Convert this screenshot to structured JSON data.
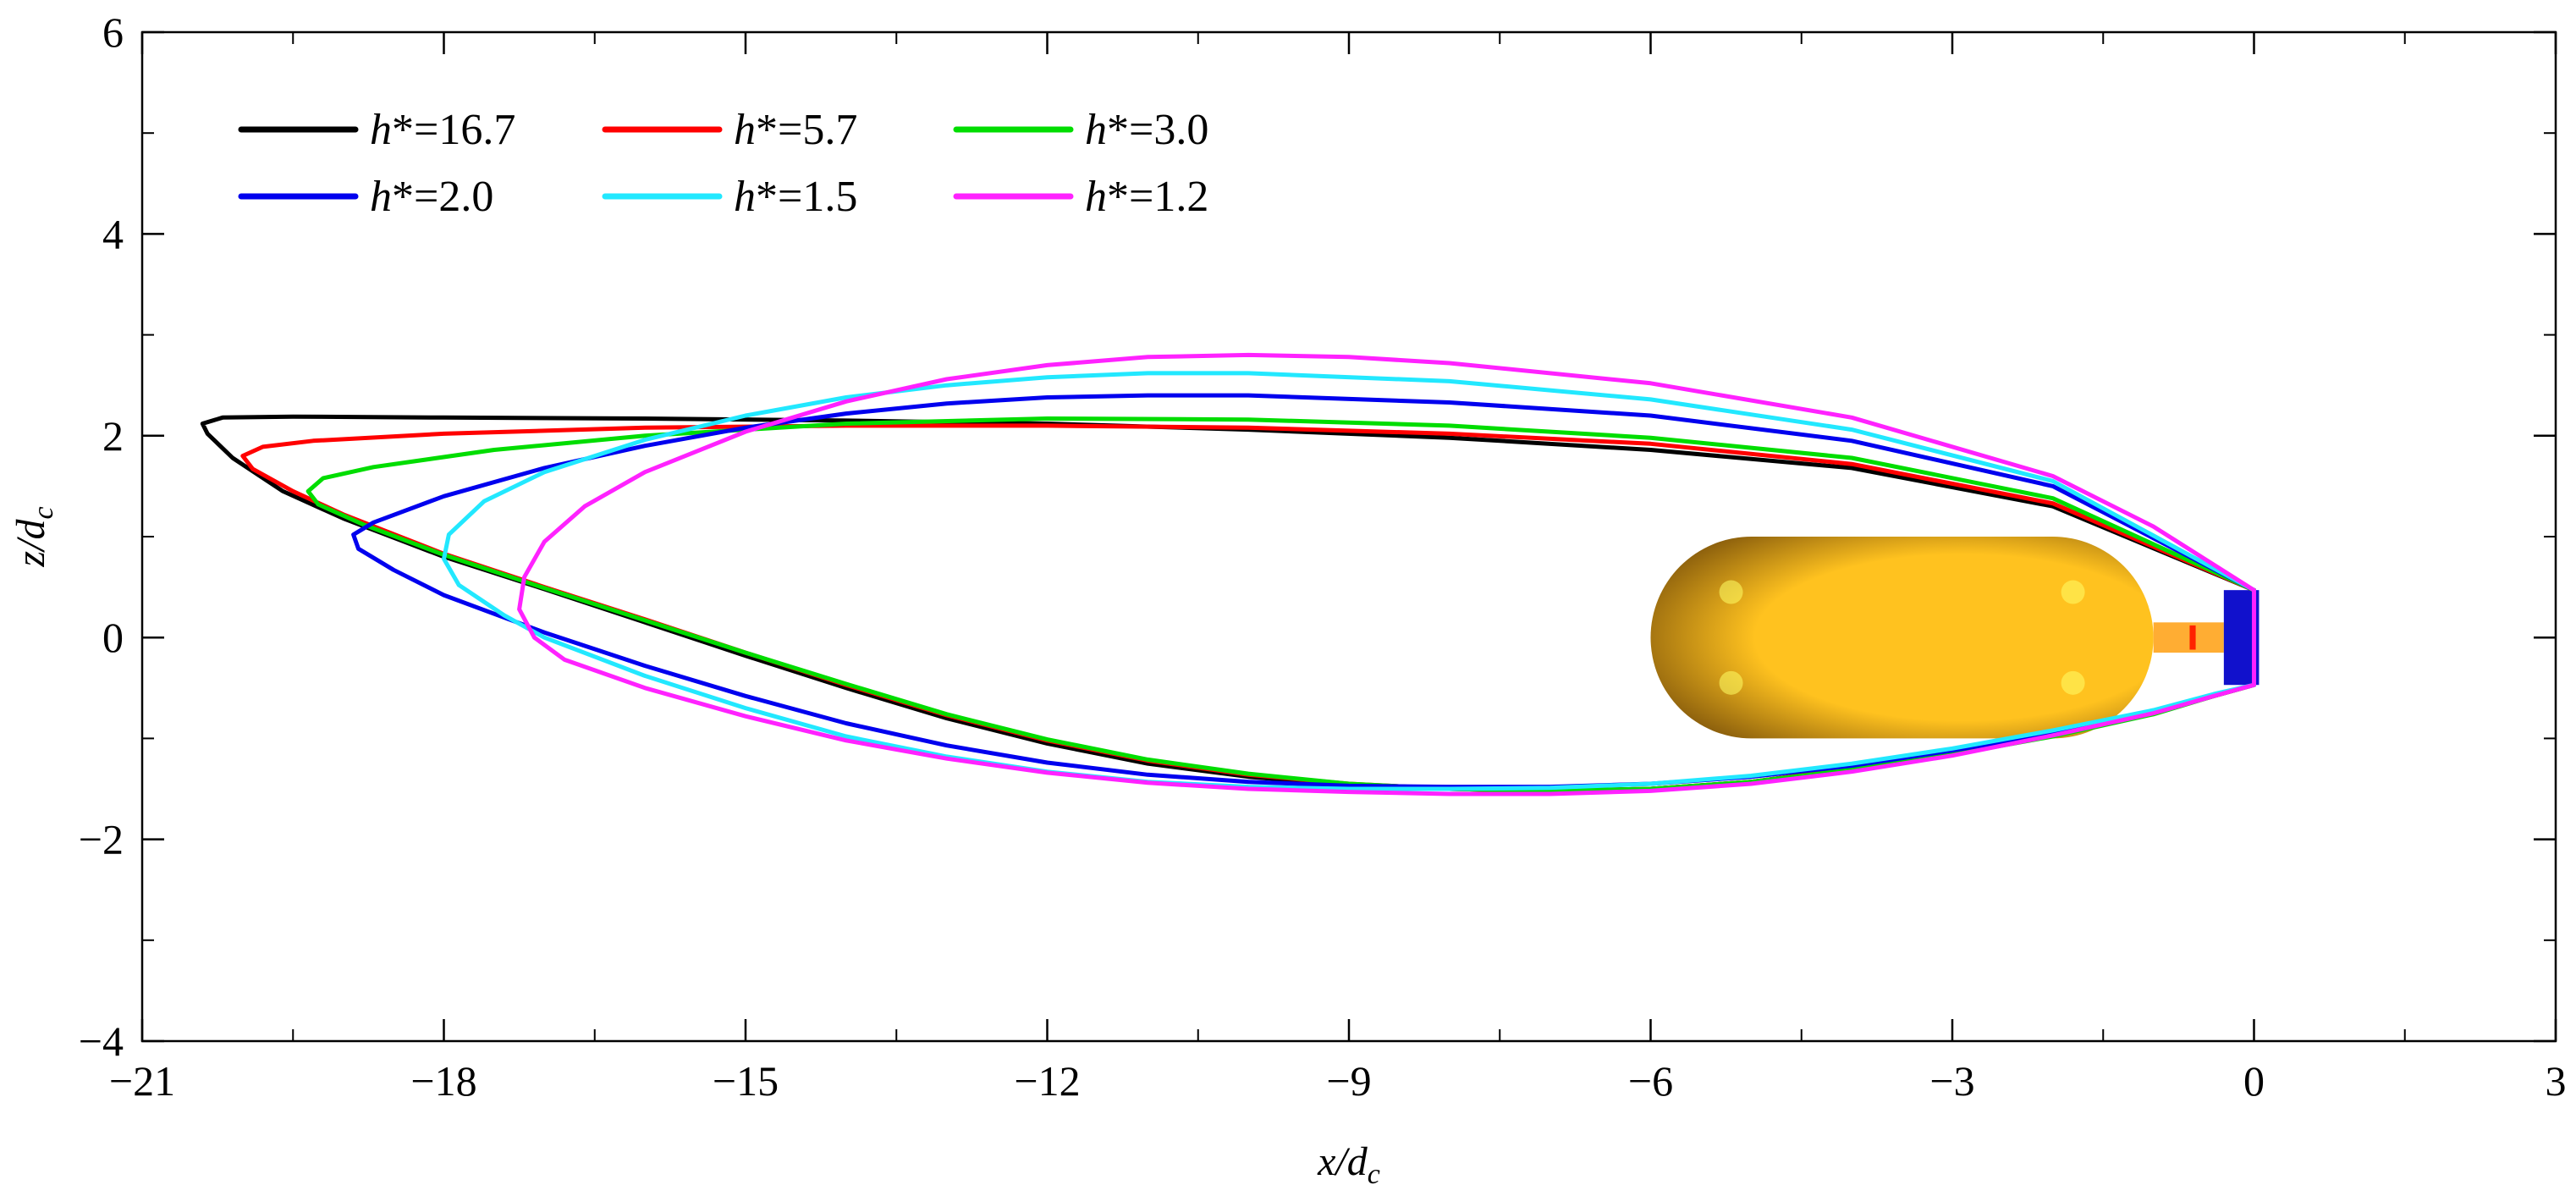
{
  "chart_data": {
    "type": "line",
    "title": "",
    "xlabel": "x/d",
    "xlabel_sub": "c",
    "ylabel": "z/d",
    "ylabel_sub": "c",
    "xlim": [
      -21,
      3
    ],
    "ylim": [
      -4,
      6
    ],
    "xticks": [
      -21,
      -18,
      -15,
      -12,
      -9,
      -6,
      -3,
      0,
      3
    ],
    "yticks": [
      -4,
      -2,
      0,
      2,
      4,
      6
    ],
    "xtick_labels": [
      "−21",
      "−18",
      "−15",
      "−12",
      "−9",
      "−6",
      "−3",
      "0",
      "3"
    ],
    "ytick_labels": [
      "−4",
      "−2",
      "0",
      "2",
      "4",
      "6"
    ],
    "grid": false,
    "legend_position": "top-left",
    "series": [
      {
        "name": "h*=16.7",
        "label_var": "h",
        "label_rest": "*=16.7",
        "color": "#000000",
        "points": [
          [
            0,
            0.47
          ],
          [
            -2,
            1.3
          ],
          [
            -4,
            1.68
          ],
          [
            -6,
            1.86
          ],
          [
            -8,
            1.98
          ],
          [
            -10,
            2.06
          ],
          [
            -12,
            2.12
          ],
          [
            -14,
            2.15
          ],
          [
            -16,
            2.17
          ],
          [
            -18,
            2.18
          ],
          [
            -19.5,
            2.19
          ],
          [
            -20.2,
            2.18
          ],
          [
            -20.4,
            2.12
          ],
          [
            -20.35,
            2.02
          ],
          [
            -20.1,
            1.78
          ],
          [
            -19.6,
            1.45
          ],
          [
            -19,
            1.18
          ],
          [
            -18,
            0.8
          ],
          [
            -17,
            0.48
          ],
          [
            -16,
            0.15
          ],
          [
            -15,
            -0.18
          ],
          [
            -14,
            -0.5
          ],
          [
            -13,
            -0.8
          ],
          [
            -12,
            -1.05
          ],
          [
            -11,
            -1.25
          ],
          [
            -10,
            -1.38
          ],
          [
            -9,
            -1.46
          ],
          [
            -8,
            -1.5
          ],
          [
            -7,
            -1.52
          ],
          [
            -6,
            -1.5
          ],
          [
            -5,
            -1.43
          ],
          [
            -4,
            -1.3
          ],
          [
            -3,
            -1.15
          ],
          [
            -2,
            -0.97
          ],
          [
            -1,
            -0.75
          ],
          [
            -0.4,
            -0.58
          ],
          [
            0,
            -0.47
          ]
        ]
      },
      {
        "name": "h*=5.7",
        "label_var": "h",
        "label_rest": "*=5.7",
        "color": "#ff0000",
        "points": [
          [
            0,
            0.47
          ],
          [
            -2,
            1.33
          ],
          [
            -4,
            1.72
          ],
          [
            -6,
            1.92
          ],
          [
            -8,
            2.02
          ],
          [
            -10,
            2.08
          ],
          [
            -12,
            2.1
          ],
          [
            -14,
            2.1
          ],
          [
            -16,
            2.08
          ],
          [
            -18,
            2.02
          ],
          [
            -19.3,
            1.95
          ],
          [
            -19.8,
            1.89
          ],
          [
            -20,
            1.8
          ],
          [
            -19.9,
            1.67
          ],
          [
            -19.5,
            1.45
          ],
          [
            -19,
            1.22
          ],
          [
            -18,
            0.83
          ],
          [
            -17,
            0.5
          ],
          [
            -16,
            0.18
          ],
          [
            -15,
            -0.15
          ],
          [
            -14,
            -0.47
          ],
          [
            -13,
            -0.77
          ],
          [
            -12,
            -1.02
          ],
          [
            -11,
            -1.22
          ],
          [
            -10,
            -1.36
          ],
          [
            -9,
            -1.45
          ],
          [
            -8,
            -1.5
          ],
          [
            -7,
            -1.52
          ],
          [
            -6,
            -1.5
          ],
          [
            -5,
            -1.43
          ],
          [
            -4,
            -1.3
          ],
          [
            -3,
            -1.15
          ],
          [
            -2,
            -0.97
          ],
          [
            -1,
            -0.75
          ],
          [
            -0.4,
            -0.58
          ],
          [
            0,
            -0.47
          ]
        ]
      },
      {
        "name": "h*=3.0",
        "label_var": "h",
        "label_rest": "*=3.0",
        "color": "#00dd00",
        "points": [
          [
            0,
            0.47
          ],
          [
            -2,
            1.38
          ],
          [
            -4,
            1.78
          ],
          [
            -6,
            1.98
          ],
          [
            -8,
            2.1
          ],
          [
            -10,
            2.16
          ],
          [
            -12,
            2.17
          ],
          [
            -14,
            2.12
          ],
          [
            -16,
            2.0
          ],
          [
            -17.5,
            1.86
          ],
          [
            -18.7,
            1.69
          ],
          [
            -19.2,
            1.58
          ],
          [
            -19.35,
            1.45
          ],
          [
            -19.25,
            1.32
          ],
          [
            -18.8,
            1.12
          ],
          [
            -18,
            0.82
          ],
          [
            -17,
            0.49
          ],
          [
            -16,
            0.17
          ],
          [
            -15,
            -0.15
          ],
          [
            -14,
            -0.46
          ],
          [
            -13,
            -0.76
          ],
          [
            -12,
            -1.01
          ],
          [
            -11,
            -1.21
          ],
          [
            -10,
            -1.35
          ],
          [
            -9,
            -1.45
          ],
          [
            -8,
            -1.5
          ],
          [
            -7,
            -1.52
          ],
          [
            -6,
            -1.5
          ],
          [
            -5,
            -1.43
          ],
          [
            -4,
            -1.31
          ],
          [
            -3,
            -1.16
          ],
          [
            -2,
            -0.98
          ],
          [
            -1,
            -0.76
          ],
          [
            -0.4,
            -0.58
          ],
          [
            0,
            -0.47
          ]
        ]
      },
      {
        "name": "h*=2.0",
        "label_var": "h",
        "label_rest": "*=2.0",
        "color": "#0000ee",
        "points": [
          [
            0,
            0.47
          ],
          [
            -2,
            1.5
          ],
          [
            -4,
            1.95
          ],
          [
            -6,
            2.2
          ],
          [
            -8,
            2.33
          ],
          [
            -10,
            2.4
          ],
          [
            -11,
            2.4
          ],
          [
            -12,
            2.38
          ],
          [
            -13,
            2.32
          ],
          [
            -14,
            2.22
          ],
          [
            -15,
            2.08
          ],
          [
            -16,
            1.9
          ],
          [
            -17,
            1.68
          ],
          [
            -18,
            1.4
          ],
          [
            -18.7,
            1.14
          ],
          [
            -18.9,
            1.02
          ],
          [
            -18.85,
            0.88
          ],
          [
            -18.5,
            0.67
          ],
          [
            -18,
            0.42
          ],
          [
            -17,
            0.05
          ],
          [
            -16,
            -0.28
          ],
          [
            -15,
            -0.58
          ],
          [
            -14,
            -0.85
          ],
          [
            -13,
            -1.07
          ],
          [
            -12,
            -1.24
          ],
          [
            -11,
            -1.36
          ],
          [
            -10,
            -1.43
          ],
          [
            -9,
            -1.47
          ],
          [
            -8,
            -1.48
          ],
          [
            -7,
            -1.48
          ],
          [
            -6,
            -1.45
          ],
          [
            -5,
            -1.38
          ],
          [
            -4,
            -1.27
          ],
          [
            -3,
            -1.12
          ],
          [
            -2,
            -0.95
          ],
          [
            -1,
            -0.74
          ],
          [
            -0.4,
            -0.57
          ],
          [
            0,
            -0.47
          ]
        ]
      },
      {
        "name": "h*=1.5",
        "label_var": "h",
        "label_rest": "*=1.5",
        "color": "#22e8ff",
        "points": [
          [
            0,
            0.47
          ],
          [
            -2,
            1.55
          ],
          [
            -4,
            2.06
          ],
          [
            -6,
            2.36
          ],
          [
            -8,
            2.54
          ],
          [
            -10,
            2.62
          ],
          [
            -11,
            2.62
          ],
          [
            -12,
            2.58
          ],
          [
            -13,
            2.5
          ],
          [
            -14,
            2.38
          ],
          [
            -15,
            2.2
          ],
          [
            -16,
            1.96
          ],
          [
            -17,
            1.64
          ],
          [
            -17.6,
            1.35
          ],
          [
            -17.95,
            1.02
          ],
          [
            -18,
            0.78
          ],
          [
            -17.85,
            0.52
          ],
          [
            -17.4,
            0.22
          ],
          [
            -17,
            0.0
          ],
          [
            -16,
            -0.38
          ],
          [
            -15,
            -0.7
          ],
          [
            -14,
            -0.98
          ],
          [
            -13,
            -1.18
          ],
          [
            -12,
            -1.33
          ],
          [
            -11,
            -1.43
          ],
          [
            -10,
            -1.48
          ],
          [
            -9,
            -1.5
          ],
          [
            -8,
            -1.5
          ],
          [
            -7,
            -1.49
          ],
          [
            -6,
            -1.45
          ],
          [
            -5,
            -1.37
          ],
          [
            -4,
            -1.25
          ],
          [
            -3,
            -1.1
          ],
          [
            -2,
            -0.92
          ],
          [
            -1,
            -0.72
          ],
          [
            -0.4,
            -0.56
          ],
          [
            0,
            -0.47
          ]
        ]
      },
      {
        "name": "h*=1.2",
        "label_var": "h",
        "label_rest": "*=1.2",
        "color": "#ff22ff",
        "points": [
          [
            0,
            0.47
          ],
          [
            -1,
            1.1
          ],
          [
            -2,
            1.6
          ],
          [
            -4,
            2.18
          ],
          [
            -6,
            2.52
          ],
          [
            -8,
            2.72
          ],
          [
            -9,
            2.78
          ],
          [
            -10,
            2.8
          ],
          [
            -11,
            2.78
          ],
          [
            -12,
            2.7
          ],
          [
            -13,
            2.56
          ],
          [
            -14,
            2.34
          ],
          [
            -15,
            2.04
          ],
          [
            -16,
            1.64
          ],
          [
            -16.6,
            1.3
          ],
          [
            -17,
            0.95
          ],
          [
            -17.2,
            0.6
          ],
          [
            -17.25,
            0.28
          ],
          [
            -17.1,
            0.0
          ],
          [
            -16.8,
            -0.22
          ],
          [
            -16,
            -0.5
          ],
          [
            -15,
            -0.78
          ],
          [
            -14,
            -1.02
          ],
          [
            -13,
            -1.2
          ],
          [
            -12,
            -1.34
          ],
          [
            -11,
            -1.44
          ],
          [
            -10,
            -1.5
          ],
          [
            -9,
            -1.53
          ],
          [
            -8,
            -1.55
          ],
          [
            -7,
            -1.55
          ],
          [
            -6,
            -1.52
          ],
          [
            -5,
            -1.45
          ],
          [
            -4,
            -1.33
          ],
          [
            -3,
            -1.17
          ],
          [
            -2,
            -0.97
          ],
          [
            -1,
            -0.75
          ],
          [
            -0.4,
            -0.58
          ],
          [
            0,
            -0.47
          ]
        ]
      }
    ]
  },
  "body_colors": {
    "hull_light": "#ffc21f",
    "hull_dark": "#6e4608",
    "neck": "#ffad33",
    "cap": "#1111cc",
    "marker": "#ff2200"
  }
}
